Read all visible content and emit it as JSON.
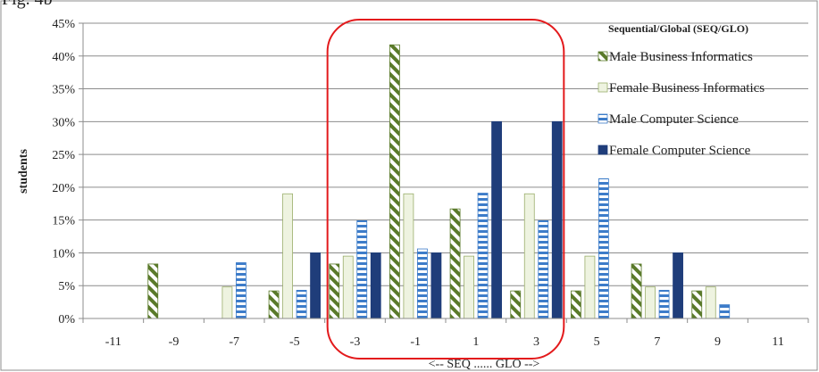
{
  "figure_label": "Fig. 4b",
  "chart_data": {
    "type": "bar",
    "title": "",
    "xlabel": "<-- SEQ ...... GLO -->",
    "ylabel": "students",
    "categories": [
      "-11",
      "-9",
      "-7",
      "-5",
      "-3",
      "-1",
      "1",
      "3",
      "5",
      "7",
      "9",
      "11"
    ],
    "ylim": [
      0,
      45
    ],
    "yticks": [
      "0%",
      "5%",
      "10%",
      "15%",
      "20%",
      "25%",
      "30%",
      "35%",
      "40%",
      "45%"
    ],
    "grid": true,
    "legend": {
      "title": "Sequential/Global (SEQ/GLO)",
      "position": "top-right"
    },
    "highlight": {
      "from": "-3",
      "to": "3",
      "color": "#e31a1c"
    },
    "series": [
      {
        "name": "Male Business Informatics",
        "pattern": "diagonal-stripes",
        "color": "#5a7a2a",
        "values": [
          0,
          8.3,
          0,
          4.2,
          8.3,
          41.7,
          16.7,
          4.2,
          4.2,
          8.3,
          4.2,
          0
        ]
      },
      {
        "name": "Female Business Informatics",
        "pattern": "light-fill",
        "color": "#eef3e0",
        "values": [
          0,
          0,
          4.8,
          19.0,
          9.5,
          19.0,
          9.5,
          19.0,
          9.5,
          4.8,
          4.8,
          0
        ]
      },
      {
        "name": "Male Computer Science",
        "pattern": "horizontal-stripes",
        "color": "#3d7cc9",
        "values": [
          0,
          0,
          8.5,
          4.3,
          14.9,
          10.6,
          19.1,
          14.9,
          21.3,
          4.3,
          2.1,
          0
        ]
      },
      {
        "name": "Female Computer Science",
        "pattern": "solid",
        "color": "#1f3d7a",
        "values": [
          0,
          0,
          0,
          10,
          10,
          10,
          30,
          30,
          0,
          10,
          0,
          0
        ]
      }
    ]
  }
}
